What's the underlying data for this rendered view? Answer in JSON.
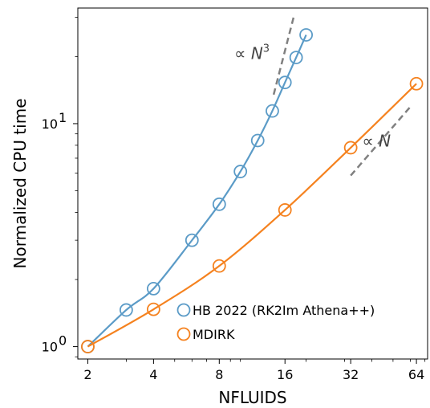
{
  "chart_data": {
    "type": "line",
    "xlabel": "NFLUIDS",
    "ylabel": "Normalized CPU time",
    "xscale": "log",
    "yscale": "log",
    "xlim": [
      1.8,
      72
    ],
    "ylim": [
      0.88,
      33
    ],
    "xticks": [
      {
        "value": 2,
        "label": "2"
      },
      {
        "value": 4,
        "label": "4"
      },
      {
        "value": 8,
        "label": "8"
      },
      {
        "value": 16,
        "label": "16"
      },
      {
        "value": 32,
        "label": "32"
      },
      {
        "value": 64,
        "label": "64"
      }
    ],
    "yticks": [
      {
        "value": 1,
        "base": "10",
        "exp": "0"
      },
      {
        "value": 10,
        "base": "10",
        "exp": "1"
      }
    ],
    "grid": false,
    "legend": "lower-right",
    "series": [
      {
        "name": "HB 2022 (RK2Im Athena++)",
        "color": "#5b9bc7",
        "marker": "open-circle",
        "x": [
          2,
          3,
          4,
          6,
          8,
          10,
          12,
          14,
          16,
          18,
          20
        ],
        "y": [
          1.0,
          1.46,
          1.82,
          3.0,
          4.35,
          6.1,
          8.4,
          11.4,
          15.3,
          19.8,
          25.0
        ]
      },
      {
        "name": "MDIRK",
        "color": "#f5821f",
        "marker": "open-circle",
        "x": [
          2,
          4,
          8,
          16,
          32,
          64
        ],
        "y": [
          1.0,
          1.47,
          2.3,
          4.1,
          7.8,
          15.1
        ]
      }
    ],
    "annotations": [
      {
        "text_prefix": "∝ ",
        "text_var": "N",
        "text_sup": "3",
        "line": {
          "x": [
            14.2,
            17.6
          ],
          "y": [
            13.5,
            30.5
          ]
        },
        "color": "#808080",
        "style": "dashed",
        "label_at": {
          "x": 11.3,
          "y": 19.5
        }
      },
      {
        "text_prefix": "∝ ",
        "text_var": "N",
        "text_sup": "",
        "line": {
          "x": [
            32,
            60
          ],
          "y": [
            5.85,
            11.9
          ]
        },
        "color": "#808080",
        "style": "dashed",
        "label_at": {
          "x": 42,
          "y": 7.9
        }
      }
    ]
  }
}
